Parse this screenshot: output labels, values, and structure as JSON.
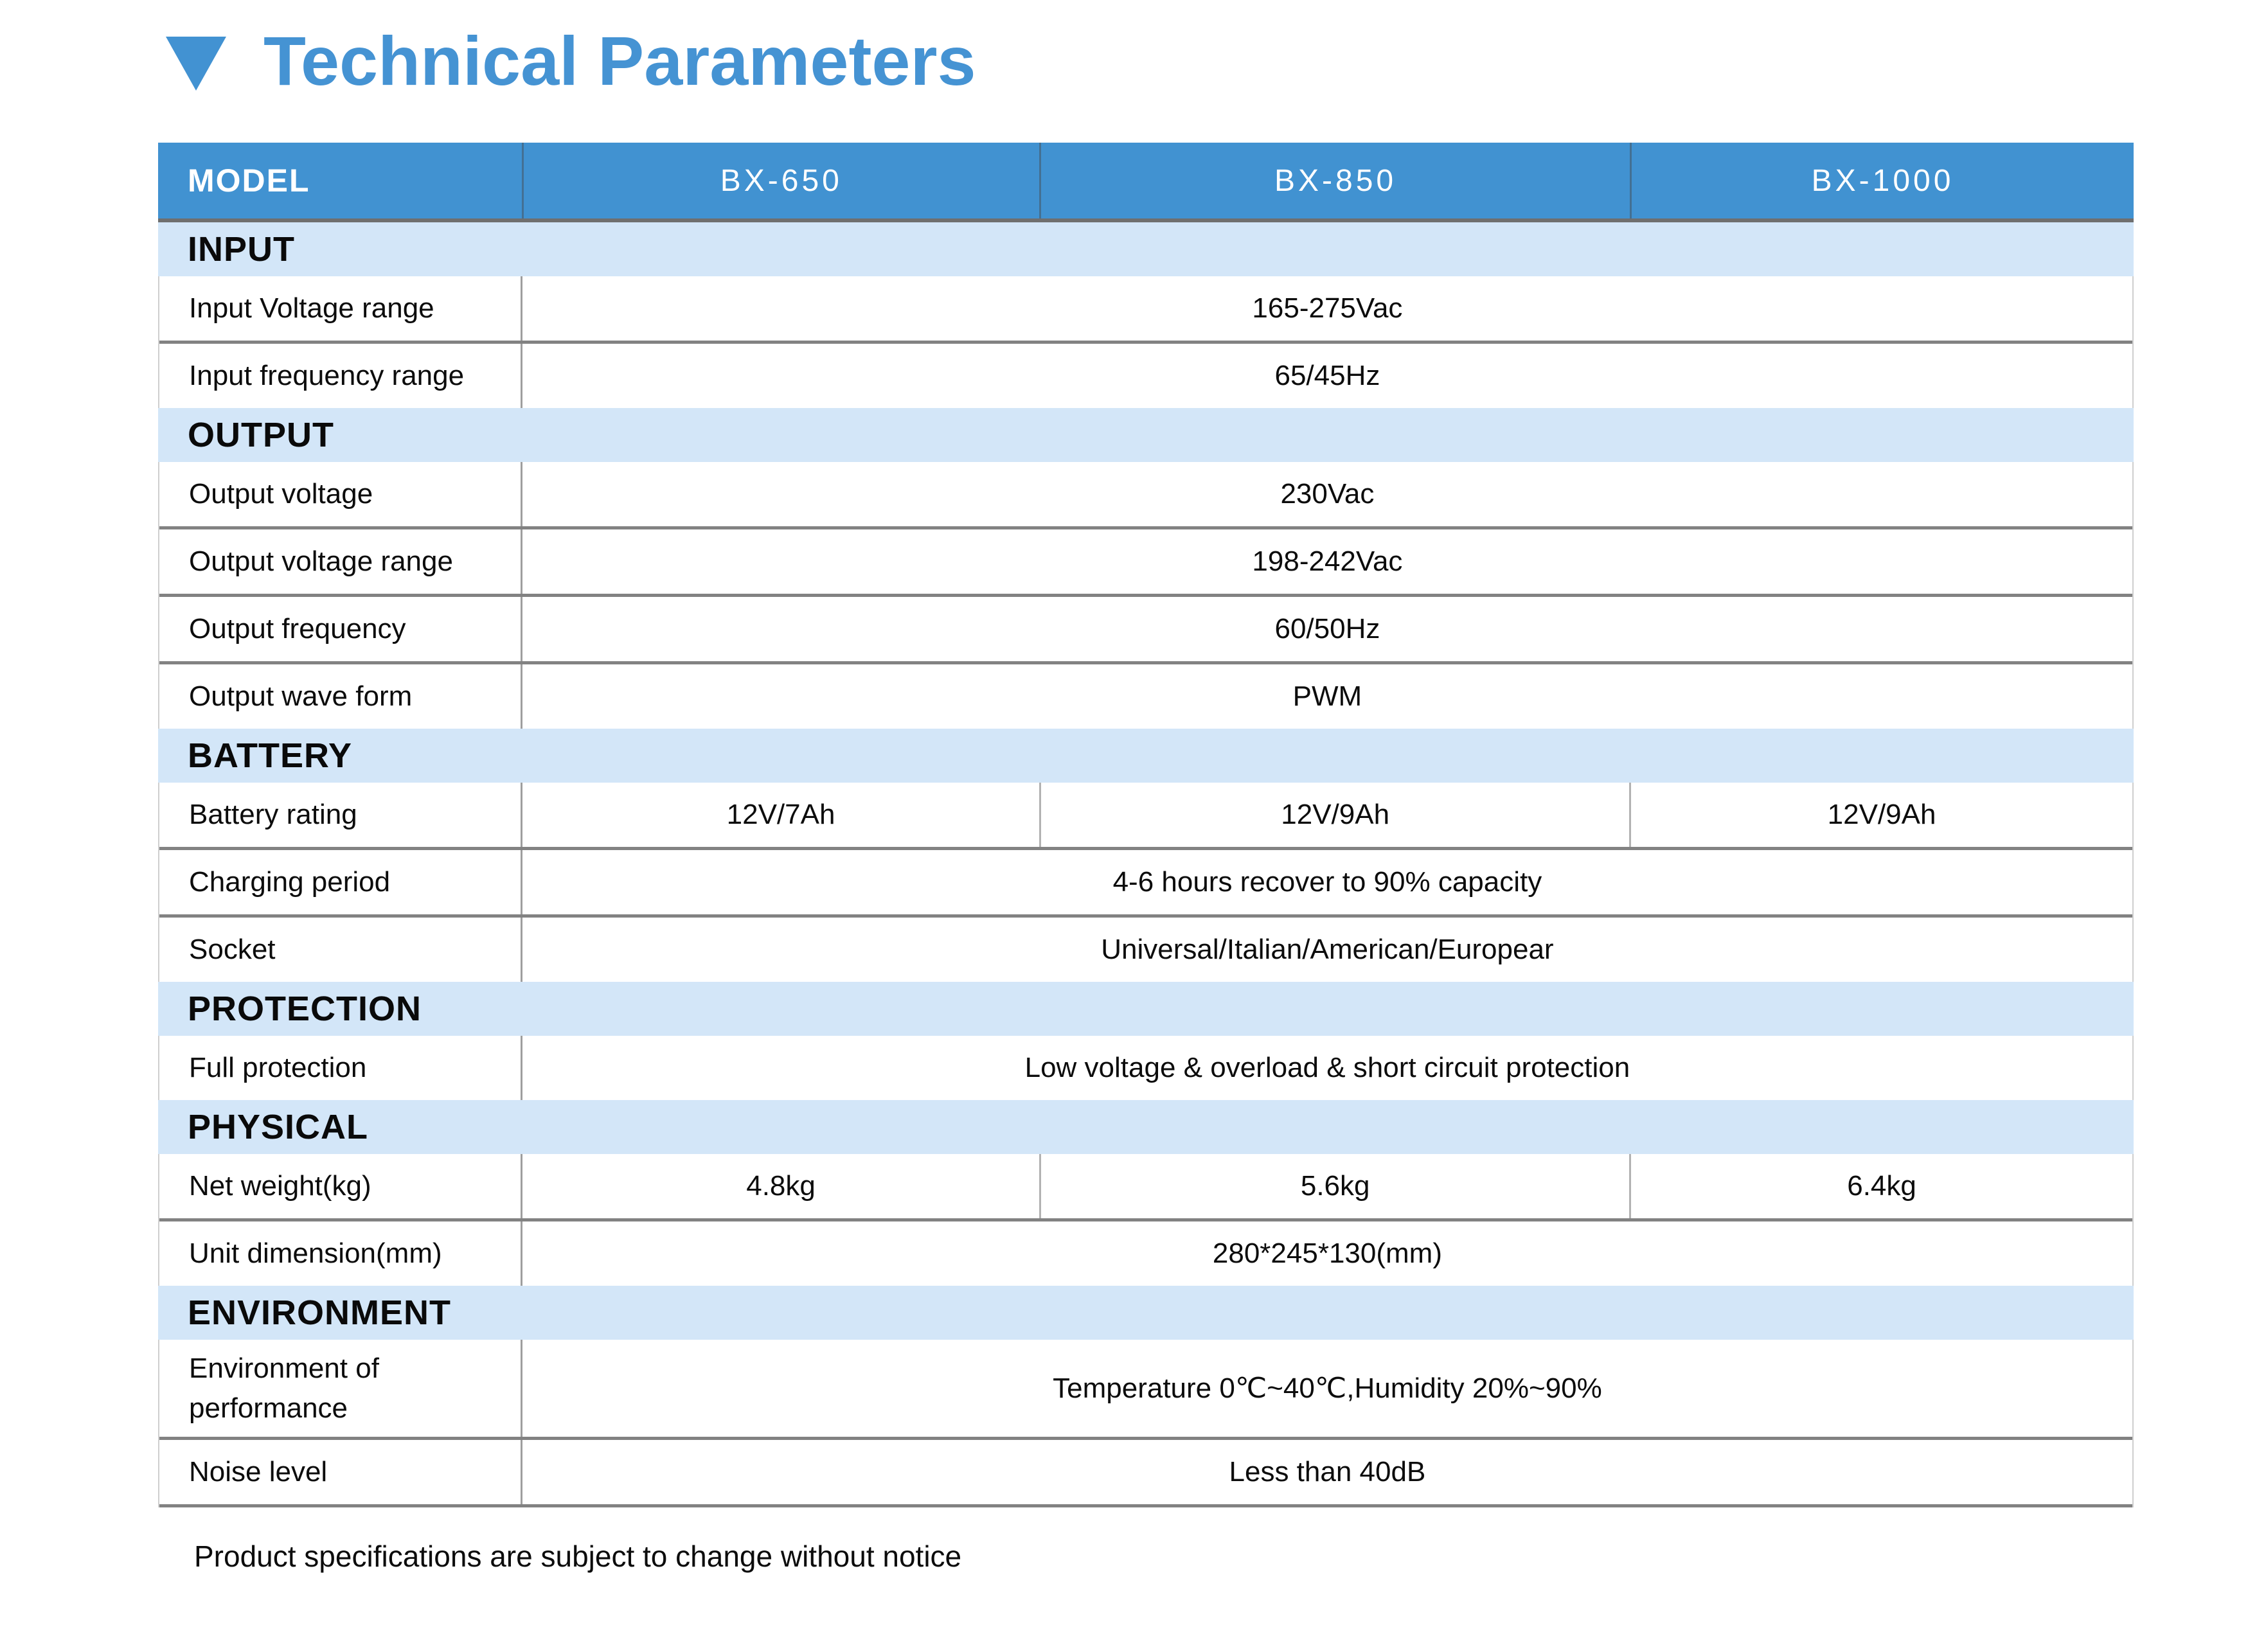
{
  "title": {
    "text": "Technical Parameters"
  },
  "colors": {
    "accent_blue": "#4192d1",
    "title_blue": "#4593d3",
    "section_band_blue": "#d3e6f8",
    "divider_gray": "#828282"
  },
  "table": {
    "header": {
      "model_label": "MODEL",
      "models": [
        "BX-650",
        "BX-850",
        "BX-1000"
      ]
    },
    "sections": [
      {
        "label": "INPUT",
        "rows": [
          {
            "label": "Input Voltage range",
            "value": "165-275Vac"
          },
          {
            "label": "Input frequency range",
            "value": "65/45Hz"
          }
        ]
      },
      {
        "label": "OUTPUT",
        "rows": [
          {
            "label": "Output voltage",
            "value": "230Vac"
          },
          {
            "label": "Output voltage range",
            "value": "198-242Vac"
          },
          {
            "label": "Output frequency",
            "value": "60/50Hz"
          },
          {
            "label": "Output wave form",
            "value": "PWM"
          }
        ]
      },
      {
        "label": "BATTERY",
        "rows": [
          {
            "label": "Battery rating",
            "values": [
              "12V/7Ah",
              "12V/9Ah",
              "12V/9Ah"
            ]
          },
          {
            "label": "Charging period",
            "value": "4-6 hours recover to 90% capacity"
          },
          {
            "label": "Socket",
            "value": "Universal/Italian/American/Europear"
          }
        ]
      },
      {
        "label": "PROTECTION",
        "rows": [
          {
            "label": "Full protection",
            "value": "Low voltage & overload & short circuit protection"
          }
        ]
      },
      {
        "label": "PHYSICAL",
        "rows": [
          {
            "label": "Net weight(kg)",
            "values": [
              "4.8kg",
              "5.6kg",
              "6.4kg"
            ]
          },
          {
            "label": "Unit dimension(mm)",
            "value": "280*245*130(mm)"
          }
        ]
      },
      {
        "label": "ENVIRONMENT",
        "rows": [
          {
            "label": "Environment of performance",
            "value": "Temperature 0℃~40℃,Humidity 20%~90%"
          },
          {
            "label": "Noise level",
            "value": "Less than 40dB"
          }
        ]
      }
    ]
  },
  "footer": {
    "note": "Product specifications are subject to change without notice"
  }
}
